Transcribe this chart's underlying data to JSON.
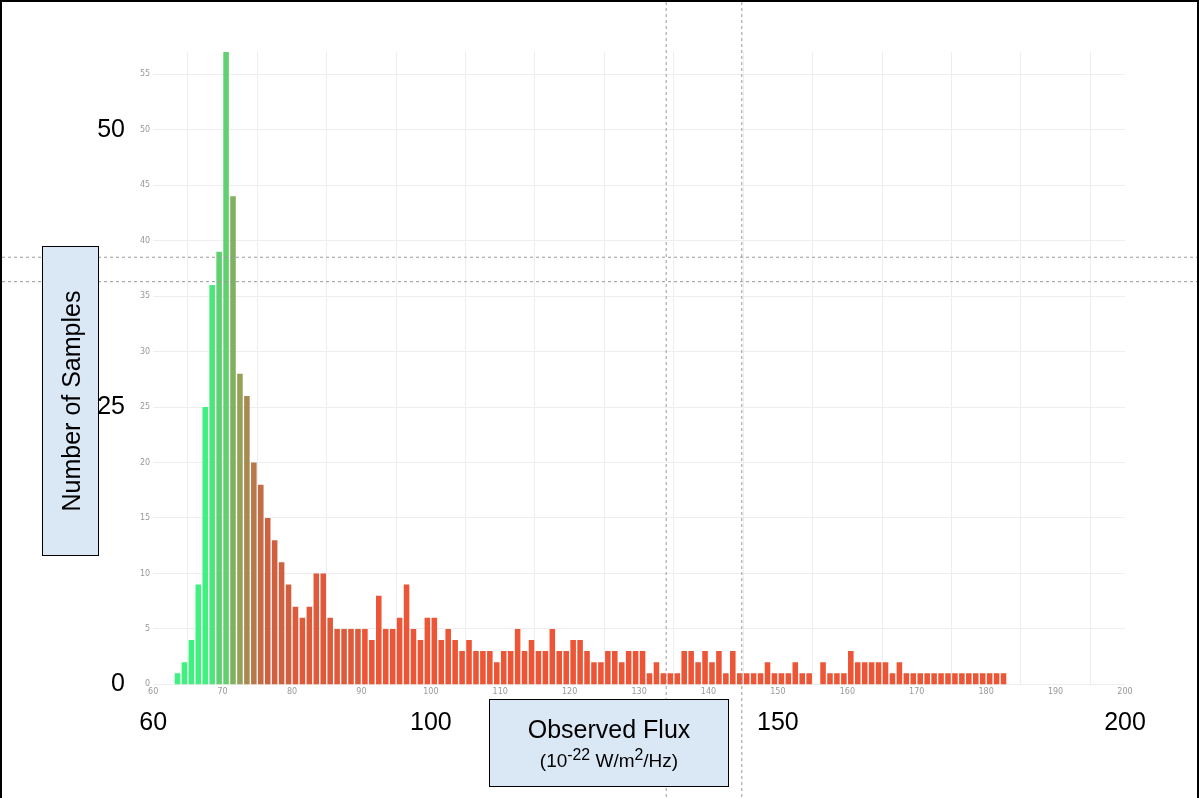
{
  "chart_data": {
    "type": "histogram",
    "xlabel": "Observed Flux\n(10$^{-22}$ W/m$^{2}$/Hz)",
    "ylabel": "Number of Samples",
    "bins": [
      63,
      64,
      65,
      66,
      67,
      68,
      69,
      70,
      71,
      72,
      73,
      74,
      75,
      76,
      77,
      78,
      79,
      80,
      81,
      82,
      83,
      84,
      85,
      86,
      87,
      88,
      89,
      90,
      91,
      92,
      93,
      94,
      95,
      96,
      97,
      98,
      99,
      100,
      101,
      102,
      103,
      104,
      105,
      106,
      107,
      108,
      109,
      110,
      111,
      112,
      113,
      114,
      115,
      116,
      117,
      118,
      119,
      120,
      121,
      122,
      123,
      124,
      125,
      126,
      127,
      128,
      129,
      130,
      131,
      132,
      133,
      134,
      135,
      136,
      137,
      138,
      139,
      140,
      141,
      142,
      143,
      144,
      145,
      146,
      147,
      148,
      149,
      150,
      151,
      152,
      153,
      154,
      155,
      156,
      157,
      158,
      159,
      160,
      161,
      162,
      163,
      164,
      165,
      166,
      167,
      168,
      169,
      170,
      171,
      172,
      173,
      174,
      175,
      176,
      177,
      178,
      179,
      180,
      181,
      182,
      183
    ],
    "values": [
      1,
      2,
      4,
      9,
      25,
      36,
      39,
      57,
      44,
      28,
      26,
      20,
      18,
      15,
      13,
      11,
      9,
      7,
      6,
      7,
      10,
      10,
      6,
      5,
      5,
      5,
      5,
      5,
      4,
      8,
      5,
      5,
      6,
      9,
      5,
      4,
      6,
      6,
      4,
      5,
      4,
      3,
      4,
      3,
      3,
      3,
      2,
      3,
      3,
      5,
      3,
      4,
      3,
      3,
      5,
      3,
      3,
      4,
      4,
      3,
      2,
      2,
      3,
      3,
      2,
      3,
      3,
      3,
      1,
      2,
      1,
      1,
      1,
      3,
      3,
      2,
      3,
      2,
      3,
      1,
      3,
      1,
      1,
      1,
      1,
      2,
      1,
      1,
      1,
      2,
      1,
      1,
      0,
      2,
      1,
      1,
      1,
      3,
      2,
      2,
      2,
      2,
      2,
      1,
      2,
      1,
      1,
      1,
      1,
      1,
      1,
      1,
      1,
      1,
      1,
      1,
      1,
      1,
      1,
      1
    ],
    "colors": [
      "#40f080",
      "#40f080",
      "#40f080",
      "#40f080",
      "#40f080",
      "#48e87c",
      "#60d070",
      "#60d070",
      "#80b060",
      "#96a058",
      "#a88a50",
      "#b8784a",
      "#c46c45",
      "#cf6040",
      "#cf6040",
      "#cf6040",
      "#cf6040",
      "#de5a3a",
      "#de5a3a",
      "#de5a3a",
      "#de5a3a",
      "#de5a3a",
      "#de5a3a",
      "#de5a3a",
      "#de5a3a",
      "#de5a3a",
      "#de5a3a",
      "#ec5535",
      "#ec5535",
      "#ec5535",
      "#ec5535",
      "#ec5535",
      "#ec5535",
      "#ec5535",
      "#ec5535",
      "#ec5535",
      "#ec5535",
      "#ec5535",
      "#ec5535",
      "#ec5535",
      "#ec5535",
      "#ec5535",
      "#ec5535",
      "#ec5535",
      "#ec5535",
      "#ec5535",
      "#ec5535",
      "#ec5535",
      "#ec5535",
      "#ec5535",
      "#ec5535",
      "#ec5535",
      "#ec5535",
      "#ec5535",
      "#ec5535",
      "#ec5535",
      "#ec5535",
      "#ec5535",
      "#ec5535",
      "#ec5535",
      "#ec5535",
      "#ec5535",
      "#ec5535",
      "#ec5535",
      "#ec5535",
      "#ec5535",
      "#ec5535",
      "#ec5535",
      "#ec5535",
      "#ec5535",
      "#ec5535",
      "#ec5535",
      "#ec5535",
      "#ec5535",
      "#ec5535",
      "#ec5535",
      "#ec5535",
      "#ec5535",
      "#ec5535",
      "#ec5535",
      "#ec5535",
      "#ec5535",
      "#ec5535",
      "#ec5535",
      "#ec5535",
      "#ec5535",
      "#ec5535",
      "#ec5535",
      "#ec5535",
      "#ec5535",
      "#ec5535",
      "#ec5535",
      "#ec5535",
      "#ec5535",
      "#ec5535",
      "#ec5535",
      "#ec5535",
      "#ec5535",
      "#ec5535",
      "#ec5535",
      "#ec5535",
      "#ec5535",
      "#ec5535",
      "#ec5535",
      "#ec5535",
      "#ec5535",
      "#ec5535",
      "#ec5535",
      "#ec5535",
      "#ec5535",
      "#ec5535",
      "#ec5535",
      "#ec5535",
      "#ec5535",
      "#ec5535",
      "#ec5535",
      "#ec5535",
      "#ec5535",
      "#ec5535",
      "#ec5535"
    ],
    "xlim": [
      60,
      200
    ],
    "xticks": [
      60,
      70,
      80,
      90,
      100,
      110,
      120,
      130,
      140,
      150,
      160,
      170,
      180,
      190,
      200
    ],
    "x2lim": [
      60,
      200
    ],
    "x2ticks": [
      60,
      100,
      150,
      200
    ],
    "ylim": [
      0,
      57
    ],
    "yticks": [
      0,
      25,
      50
    ],
    "y2lim": [
      0,
      57
    ],
    "y2ticks": [
      0,
      5,
      10,
      15,
      20,
      25,
      30,
      35,
      40,
      45,
      50,
      55
    ],
    "ref_lines": [
      {
        "axis": "x",
        "value": 133.9,
        "color": "#999999",
        "line_style": "dashed"
      },
      {
        "axis": "x",
        "value": 144.8,
        "color": "#999999",
        "line_style": "dashed"
      },
      {
        "axis": "y",
        "value": 38.5,
        "color": "#999999",
        "line_style": "dashed"
      },
      {
        "axis": "y",
        "value": 36.3,
        "color": "#999999",
        "line_style": "dashed"
      }
    ],
    "grid": true,
    "legend": false
  }
}
